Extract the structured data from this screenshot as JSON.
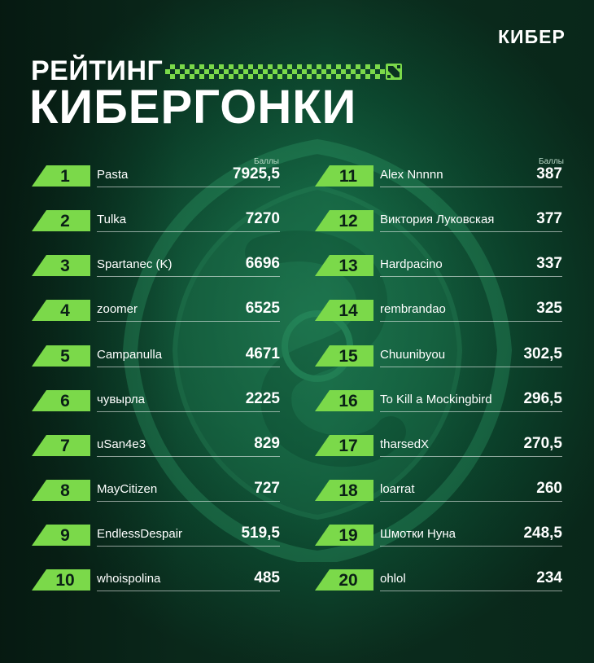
{
  "brand": "КИБЕР",
  "title_top": "РЕЙТИНГ",
  "title_bottom": "КИБЕРГОНКИ",
  "score_header": "Баллы",
  "colors": {
    "accent": "#7bd94a",
    "background": "#156643"
  },
  "left_rows": [
    {
      "rank": "1",
      "name": "Pasta",
      "score": "7925,5"
    },
    {
      "rank": "2",
      "name": "Tulka",
      "score": "7270"
    },
    {
      "rank": "3",
      "name": "Spartanec (K)",
      "score": "6696"
    },
    {
      "rank": "4",
      "name": "zoomer",
      "score": "6525"
    },
    {
      "rank": "5",
      "name": "Campanulla",
      "score": "4671"
    },
    {
      "rank": "6",
      "name": "чувырла",
      "score": "2225"
    },
    {
      "rank": "7",
      "name": "uSan4e3",
      "score": "829"
    },
    {
      "rank": "8",
      "name": "MayCitizen",
      "score": "727"
    },
    {
      "rank": "9",
      "name": "EndlessDespair",
      "score": "519,5"
    },
    {
      "rank": "10",
      "name": "whoispolina",
      "score": "485"
    }
  ],
  "right_rows": [
    {
      "rank": "11",
      "name": "Alex Nnnnn",
      "score": "387"
    },
    {
      "rank": "12",
      "name": "Виктория Луковская",
      "score": "377"
    },
    {
      "rank": "13",
      "name": "Hardpacino",
      "score": "337"
    },
    {
      "rank": "14",
      "name": "rembrandao",
      "score": "325"
    },
    {
      "rank": "15",
      "name": "Chuunibyou",
      "score": "302,5"
    },
    {
      "rank": "16",
      "name": "To Kill a Mockingbird",
      "score": "296,5"
    },
    {
      "rank": "17",
      "name": "tharsedX",
      "score": "270,5"
    },
    {
      "rank": "18",
      "name": "loarrat",
      "score": "260"
    },
    {
      "rank": "19",
      "name": "Шмотки Нуна",
      "score": "248,5"
    },
    {
      "rank": "20",
      "name": "ohlol",
      "score": "234"
    }
  ]
}
